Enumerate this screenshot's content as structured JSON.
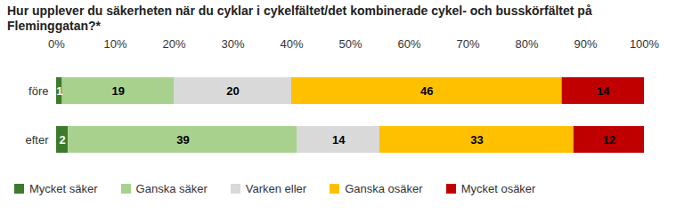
{
  "chart_data": {
    "type": "bar",
    "orientation": "horizontal",
    "stacked": true,
    "title": "Hur upplever du säkerheten när du cyklar i cykelfältet/det kombinerade cykel- och busskörfältet på Fleminggatan?*",
    "categories": [
      "före",
      "efter"
    ],
    "series": [
      {
        "name": "Mycket säker",
        "color": "#3d7b2c",
        "values": [
          1,
          2
        ]
      },
      {
        "name": "Ganska säker",
        "color": "#a9d18e",
        "values": [
          19,
          39
        ]
      },
      {
        "name": "Varken eller",
        "color": "#d9d9d9",
        "values": [
          20,
          14
        ]
      },
      {
        "name": "Ganska osäker",
        "color": "#ffc000",
        "values": [
          46,
          33
        ]
      },
      {
        "name": "Mycket osäker",
        "color": "#c00000",
        "values": [
          14,
          12
        ]
      }
    ],
    "xlim": [
      0,
      100
    ],
    "xticks": [
      {
        "value": 0,
        "label": "0%"
      },
      {
        "value": 10,
        "label": "10%"
      },
      {
        "value": 20,
        "label": "20%"
      },
      {
        "value": 30,
        "label": "30%"
      },
      {
        "value": 40,
        "label": "40%"
      },
      {
        "value": 50,
        "label": "50%"
      },
      {
        "value": 60,
        "label": "60%"
      },
      {
        "value": 70,
        "label": "70%"
      },
      {
        "value": 80,
        "label": "80%"
      },
      {
        "value": 90,
        "label": "90%"
      },
      {
        "value": 100,
        "label": "100%"
      }
    ],
    "grid": false,
    "data_labels": true,
    "legend": "bottom"
  }
}
